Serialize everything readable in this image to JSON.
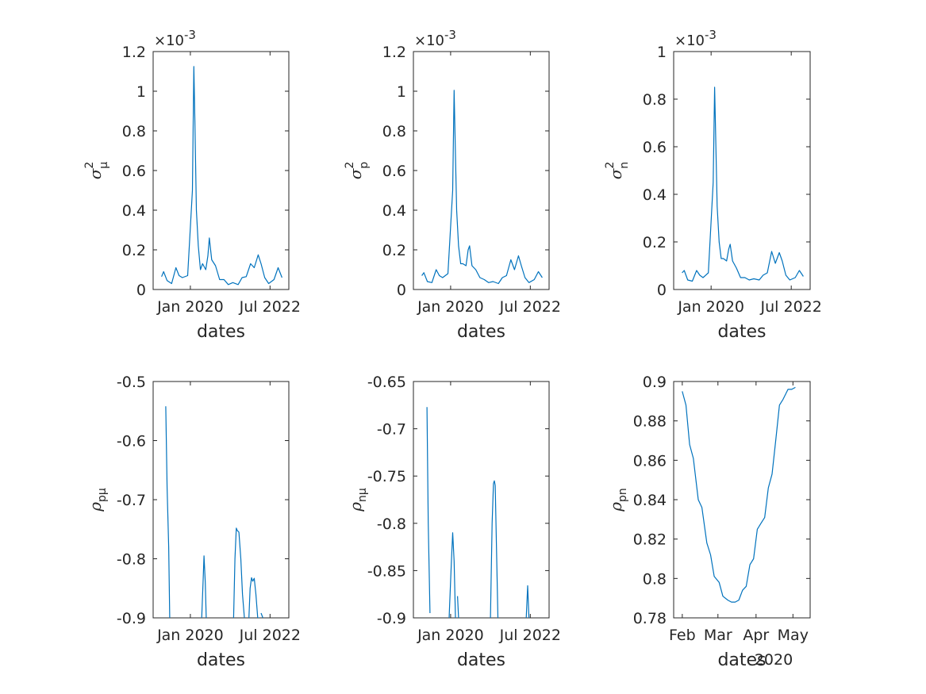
{
  "colors": {
    "line": "#0072BD",
    "axis": "#262626",
    "background": "#ffffff"
  },
  "chart_data": [
    {
      "type": "line",
      "xlabel": "dates",
      "ylabel": {
        "base": "σ",
        "sup": "2",
        "sub": "μ"
      },
      "multiplier": "×10-3",
      "multiplier_parts": {
        "times": "×10",
        "exp": "-3"
      },
      "ylim": [
        0,
        1.2
      ],
      "xlim": [
        "2018-11-01",
        "2023-02-01"
      ],
      "yticks": [
        0,
        0.2,
        0.4,
        0.6,
        0.8,
        1,
        1.2
      ],
      "ytick_labels": [
        "0",
        "0.2",
        "0.4",
        "0.6",
        "0.8",
        "1",
        "1.2"
      ],
      "xticks": [
        "2020-01-01",
        "2022-07-01"
      ],
      "xtick_labels": [
        "Jan 2020",
        "Jul 2022"
      ],
      "series": [
        {
          "x": [
            "2019-02-05",
            "2019-03-01",
            "2019-04-10",
            "2019-06-01",
            "2019-07-20",
            "2019-08-25",
            "2019-10-01",
            "2019-12-01",
            "2020-01-25",
            "2020-02-10",
            "2020-02-22",
            "2020-03-10",
            "2020-04-01",
            "2020-04-25",
            "2020-05-20",
            "2020-06-25",
            "2020-07-20",
            "2020-08-05",
            "2020-09-01",
            "2020-10-15",
            "2020-12-01",
            "2021-01-20",
            "2021-03-10",
            "2021-05-01",
            "2021-07-01",
            "2021-08-15",
            "2021-10-01",
            "2021-11-20",
            "2022-01-01",
            "2022-02-15",
            "2022-03-20",
            "2022-05-01",
            "2022-06-15",
            "2022-08-15",
            "2022-10-01",
            "2022-11-15"
          ],
          "y": [
            0.065,
            0.09,
            0.045,
            0.03,
            0.11,
            0.07,
            0.06,
            0.07,
            0.5,
            1.125,
            0.85,
            0.4,
            0.22,
            0.1,
            0.13,
            0.1,
            0.17,
            0.26,
            0.15,
            0.12,
            0.05,
            0.05,
            0.025,
            0.035,
            0.025,
            0.06,
            0.065,
            0.13,
            0.11,
            0.175,
            0.13,
            0.06,
            0.03,
            0.05,
            0.11,
            0.06
          ]
        }
      ]
    },
    {
      "type": "line",
      "xlabel": "dates",
      "ylabel": {
        "base": "σ",
        "sup": "2",
        "sub": "p"
      },
      "multiplier": "×10-3",
      "multiplier_parts": {
        "times": "×10",
        "exp": "-3"
      },
      "ylim": [
        0,
        1.2
      ],
      "xlim": [
        "2018-11-01",
        "2023-02-01"
      ],
      "yticks": [
        0,
        0.2,
        0.4,
        0.6,
        0.8,
        1,
        1.2
      ],
      "ytick_labels": [
        "0",
        "0.2",
        "0.4",
        "0.6",
        "0.8",
        "1",
        "1.2"
      ],
      "xticks": [
        "2020-01-01",
        "2022-07-01"
      ],
      "xtick_labels": [
        "Jan 2020",
        "Jul 2022"
      ],
      "series": [
        {
          "x": [
            "2019-02-05",
            "2019-03-01",
            "2019-04-10",
            "2019-06-01",
            "2019-07-20",
            "2019-08-25",
            "2019-10-01",
            "2019-12-01",
            "2020-01-25",
            "2020-02-10",
            "2020-02-22",
            "2020-03-10",
            "2020-04-01",
            "2020-04-25",
            "2020-05-20",
            "2020-06-25",
            "2020-07-20",
            "2020-08-05",
            "2020-09-01",
            "2020-10-15",
            "2020-12-01",
            "2021-01-20",
            "2021-03-10",
            "2021-05-01",
            "2021-07-01",
            "2021-08-15",
            "2021-10-01",
            "2021-11-20",
            "2022-01-01",
            "2022-02-15",
            "2022-03-20",
            "2022-05-01",
            "2022-06-15",
            "2022-08-15",
            "2022-10-01",
            "2022-11-15"
          ],
          "y": [
            0.07,
            0.085,
            0.04,
            0.035,
            0.1,
            0.07,
            0.06,
            0.08,
            0.5,
            1.005,
            0.75,
            0.4,
            0.22,
            0.13,
            0.13,
            0.12,
            0.2,
            0.22,
            0.12,
            0.1,
            0.06,
            0.05,
            0.035,
            0.04,
            0.03,
            0.06,
            0.07,
            0.15,
            0.1,
            0.17,
            0.12,
            0.06,
            0.035,
            0.05,
            0.09,
            0.06
          ]
        }
      ]
    },
    {
      "type": "line",
      "xlabel": "dates",
      "ylabel": {
        "base": "σ",
        "sup": "2",
        "sub": "n"
      },
      "multiplier": "×10-3",
      "multiplier_parts": {
        "times": "×10",
        "exp": "-3"
      },
      "ylim": [
        0,
        1
      ],
      "xlim": [
        "2018-11-01",
        "2023-02-01"
      ],
      "yticks": [
        0,
        0.2,
        0.4,
        0.6,
        0.8,
        1
      ],
      "ytick_labels": [
        "0",
        "0.2",
        "0.4",
        "0.6",
        "0.8",
        "1"
      ],
      "xticks": [
        "2020-01-01",
        "2022-07-01"
      ],
      "xtick_labels": [
        "Jan 2020",
        "Jul 2022"
      ],
      "series": [
        {
          "x": [
            "2019-02-05",
            "2019-03-01",
            "2019-04-10",
            "2019-06-01",
            "2019-07-20",
            "2019-08-25",
            "2019-10-01",
            "2019-12-01",
            "2020-01-25",
            "2020-02-10",
            "2020-02-22",
            "2020-03-10",
            "2020-04-01",
            "2020-04-25",
            "2020-05-20",
            "2020-06-25",
            "2020-07-20",
            "2020-08-05",
            "2020-09-01",
            "2020-10-15",
            "2020-12-01",
            "2021-01-20",
            "2021-03-10",
            "2021-05-01",
            "2021-07-01",
            "2021-08-15",
            "2021-10-01",
            "2021-11-20",
            "2022-01-01",
            "2022-02-15",
            "2022-03-20",
            "2022-05-01",
            "2022-06-15",
            "2022-08-15",
            "2022-10-01",
            "2022-11-15"
          ],
          "y": [
            0.07,
            0.08,
            0.04,
            0.035,
            0.08,
            0.06,
            0.05,
            0.07,
            0.45,
            0.85,
            0.65,
            0.35,
            0.2,
            0.13,
            0.13,
            0.12,
            0.17,
            0.19,
            0.12,
            0.09,
            0.05,
            0.05,
            0.04,
            0.045,
            0.04,
            0.06,
            0.07,
            0.16,
            0.11,
            0.155,
            0.12,
            0.06,
            0.04,
            0.05,
            0.08,
            0.055
          ]
        }
      ]
    },
    {
      "type": "line",
      "xlabel": "dates",
      "ylabel": {
        "base": "ρ",
        "sup": "",
        "sub": "pμ"
      },
      "ylim": [
        -0.9,
        -0.5
      ],
      "xlim": [
        "2018-11-01",
        "2023-02-01"
      ],
      "yticks": [
        -0.9,
        -0.8,
        -0.7,
        -0.6,
        -0.5
      ],
      "ytick_labels": [
        "-0.9",
        "-0.8",
        "-0.7",
        "-0.6",
        "-0.5"
      ],
      "xticks": [
        "2020-01-01",
        "2022-07-01"
      ],
      "xtick_labels": [
        "Jan 2020",
        "Jul 2022"
      ],
      "series": [
        {
          "x": [
            "2019-03-25",
            "2019-04-10",
            "2019-04-28",
            "2019-05-10"
          ],
          "y": [
            -0.542,
            -0.68,
            -0.78,
            -0.9
          ]
        },
        {
          "x": [
            "2020-05-10",
            "2020-05-25",
            "2020-06-05",
            "2020-06-20",
            "2020-07-01"
          ],
          "y": [
            -0.9,
            -0.84,
            -0.795,
            -0.84,
            -0.9
          ]
        },
        {
          "x": [
            "2021-05-10",
            "2021-05-25",
            "2021-06-10",
            "2021-06-20",
            "2021-07-10",
            "2021-08-01",
            "2021-08-20",
            "2021-09-10"
          ],
          "y": [
            -0.9,
            -0.8,
            -0.748,
            -0.752,
            -0.755,
            -0.8,
            -0.86,
            -0.9
          ]
        },
        {
          "x": [
            "2021-11-01",
            "2021-11-15",
            "2021-12-01",
            "2021-12-15",
            "2022-01-01",
            "2022-01-20",
            "2022-02-10",
            "2022-03-01"
          ],
          "y": [
            -0.9,
            -0.85,
            -0.832,
            -0.838,
            -0.833,
            -0.86,
            -0.9,
            -0.9
          ]
        },
        {
          "x": [
            "2022-03-20",
            "2022-04-10"
          ],
          "y": [
            -0.892,
            -0.9
          ]
        }
      ]
    },
    {
      "type": "line",
      "xlabel": "dates",
      "ylabel": {
        "base": "ρ",
        "sup": "",
        "sub": "nμ"
      },
      "ylim": [
        -0.9,
        -0.65
      ],
      "xlim": [
        "2018-11-01",
        "2023-02-01"
      ],
      "yticks": [
        -0.9,
        -0.85,
        -0.8,
        -0.75,
        -0.7,
        -0.65
      ],
      "ytick_labels": [
        "-0.9",
        "-0.85",
        "-0.8",
        "-0.75",
        "-0.7",
        "-0.65"
      ],
      "xticks": [
        "2020-01-01",
        "2022-07-01"
      ],
      "xtick_labels": [
        "Jan 2020",
        "Jul 2022"
      ],
      "series": [
        {
          "x": [
            "2019-04-05",
            "2019-04-20",
            "2019-05-10"
          ],
          "y": [
            -0.677,
            -0.8,
            -0.895
          ]
        },
        {
          "x": [
            "2019-12-15",
            "2020-01-10",
            "2020-01-25",
            "2020-02-10",
            "2020-02-25"
          ],
          "y": [
            -0.9,
            -0.84,
            -0.81,
            -0.84,
            -0.9
          ]
        },
        {
          "x": [
            "2020-03-20",
            "2020-04-01"
          ],
          "y": [
            -0.877,
            -0.9
          ]
        },
        {
          "x": [
            "2021-04-01",
            "2021-04-20",
            "2021-05-05",
            "2021-05-15",
            "2021-05-25",
            "2021-06-10",
            "2021-06-25"
          ],
          "y": [
            -0.9,
            -0.8,
            -0.758,
            -0.755,
            -0.76,
            -0.83,
            -0.9
          ]
        },
        {
          "x": [
            "2022-05-15",
            "2022-06-01",
            "2022-06-15"
          ],
          "y": [
            -0.9,
            -0.866,
            -0.9
          ]
        }
      ]
    },
    {
      "type": "line",
      "xlabel": "dates",
      "xlabel_secondary": "2020",
      "ylabel": {
        "base": "ρ",
        "sup": "",
        "sub": "pn"
      },
      "ylim": [
        0.78,
        0.9
      ],
      "xlim": [
        "2020-01-25",
        "2020-05-15"
      ],
      "yticks": [
        0.78,
        0.8,
        0.82,
        0.84,
        0.86,
        0.88,
        0.9
      ],
      "ytick_labels": [
        "0.78",
        "0.8",
        "0.82",
        "0.84",
        "0.86",
        "0.88",
        "0.9"
      ],
      "xticks": [
        "2020-02-01",
        "2020-03-01",
        "2020-04-01",
        "2020-05-01"
      ],
      "xtick_labels": [
        "Feb",
        "Mar",
        "Apr",
        "May"
      ],
      "series": [
        {
          "x": [
            "2020-02-01",
            "2020-02-04",
            "2020-02-07",
            "2020-02-10",
            "2020-02-14",
            "2020-02-17",
            "2020-02-21",
            "2020-02-24",
            "2020-02-27",
            "2020-03-02",
            "2020-03-05",
            "2020-03-09",
            "2020-03-12",
            "2020-03-15",
            "2020-03-18",
            "2020-03-21",
            "2020-03-24",
            "2020-03-27",
            "2020-03-30",
            "2020-04-02",
            "2020-04-05",
            "2020-04-08",
            "2020-04-11",
            "2020-04-14",
            "2020-04-17",
            "2020-04-20",
            "2020-04-23",
            "2020-04-27",
            "2020-04-30",
            "2020-05-03"
          ],
          "y": [
            0.895,
            0.888,
            0.868,
            0.861,
            0.84,
            0.836,
            0.818,
            0.812,
            0.801,
            0.798,
            0.791,
            0.789,
            0.788,
            0.788,
            0.789,
            0.794,
            0.796,
            0.807,
            0.81,
            0.825,
            0.828,
            0.831,
            0.846,
            0.853,
            0.87,
            0.888,
            0.891,
            0.896,
            0.896,
            0.897
          ]
        }
      ]
    }
  ]
}
